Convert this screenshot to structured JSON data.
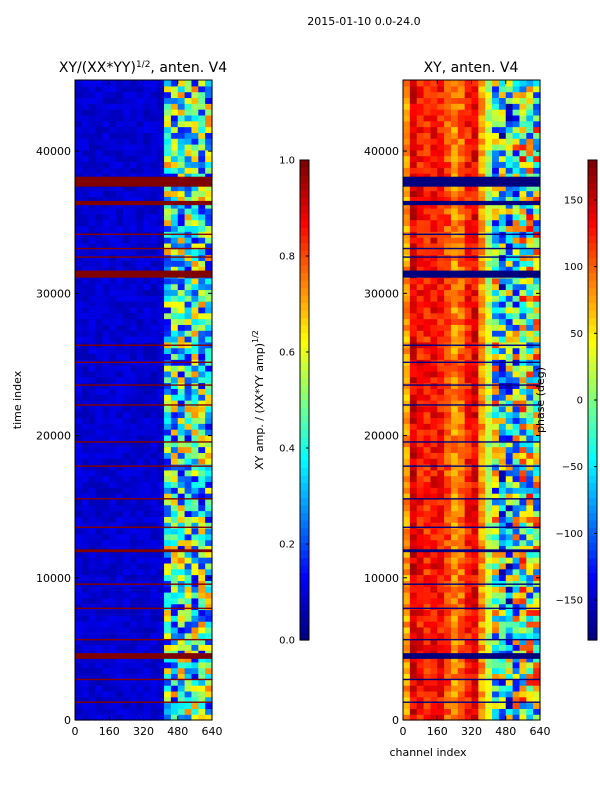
{
  "figure_title": "2015-01-10 0.0-24.0",
  "chart_data": [
    {
      "type": "heatmap",
      "title_prefix": "XY/(XX*YY)",
      "title_exponent": "1/2",
      "title_suffix": ", anten. V4",
      "xlabel": "",
      "ylabel": "time index",
      "xlim": [
        0,
        640
      ],
      "ylim": [
        0,
        45000
      ],
      "xticks": [
        0,
        160,
        320,
        480,
        640
      ],
      "yticks": [
        0,
        10000,
        20000,
        30000,
        40000
      ],
      "colormap": "jet",
      "colorbar": {
        "label_prefix": "XY amp. / (XX*YY amp)",
        "label_exponent": "1/2",
        "range": [
          0.0,
          1.0
        ],
        "ticks": [
          "0.0",
          "0.2",
          "0.4",
          "0.6",
          "0.8",
          "1.0"
        ]
      },
      "background_value": 0.08,
      "flagged_row_value": 1.0,
      "flagged_rows": [
        [
          1200,
          1300
        ],
        [
          2800,
          2900
        ],
        [
          4300,
          4700
        ],
        [
          5600,
          5700
        ],
        [
          7800,
          7900
        ],
        [
          9500,
          9600
        ],
        [
          11800,
          12000
        ],
        [
          13500,
          13600
        ],
        [
          15500,
          15600
        ],
        [
          17800,
          17900
        ],
        [
          19500,
          19600
        ],
        [
          22100,
          22200
        ],
        [
          23500,
          23600
        ],
        [
          25100,
          25200
        ],
        [
          26300,
          26400
        ],
        [
          31100,
          31600
        ],
        [
          32500,
          32600
        ],
        [
          33100,
          33200
        ],
        [
          34100,
          34200
        ],
        [
          36200,
          36500
        ],
        [
          37500,
          38200
        ]
      ],
      "active_channel_range": [
        430,
        640
      ],
      "active_value_range": [
        0.1,
        0.75
      ]
    },
    {
      "type": "heatmap",
      "title": "XY, anten. V4",
      "xlabel": "channel index",
      "ylabel": "",
      "xlim": [
        0,
        640
      ],
      "ylim": [
        0,
        45000
      ],
      "xticks": [
        0,
        160,
        320,
        480,
        640
      ],
      "yticks": [
        0,
        10000,
        20000,
        30000,
        40000
      ],
      "colormap": "jet",
      "colorbar": {
        "label": "phase (deg)",
        "range": [
          -180,
          180
        ],
        "ticks": [
          "−150",
          "−100",
          "−50",
          "0",
          "50",
          "100",
          "150"
        ]
      },
      "flagged_rows": [
        [
          1200,
          1300
        ],
        [
          2800,
          2900
        ],
        [
          4300,
          4700
        ],
        [
          5600,
          5700
        ],
        [
          7800,
          7900
        ],
        [
          9500,
          9600
        ],
        [
          11800,
          12000
        ],
        [
          13500,
          13600
        ],
        [
          15500,
          15600
        ],
        [
          17800,
          17900
        ],
        [
          19500,
          19600
        ],
        [
          22100,
          22200
        ],
        [
          23500,
          23600
        ],
        [
          25100,
          25200
        ],
        [
          26300,
          26400
        ],
        [
          31100,
          31600
        ],
        [
          32500,
          32600
        ],
        [
          33100,
          33200
        ],
        [
          34100,
          34200
        ],
        [
          36200,
          36500
        ],
        [
          37500,
          38200
        ]
      ],
      "phase_profile": [
        {
          "channel": 0,
          "phase": 30
        },
        {
          "channel": 40,
          "phase": 150
        },
        {
          "channel": 100,
          "phase": 120
        },
        {
          "channel": 160,
          "phase": 140
        },
        {
          "channel": 250,
          "phase": 80
        },
        {
          "channel": 330,
          "phase": 150
        },
        {
          "channel": 400,
          "phase": 20
        },
        {
          "channel": 480,
          "phase": -60
        },
        {
          "channel": 560,
          "phase": 10
        },
        {
          "channel": 640,
          "phase": 0
        }
      ]
    }
  ]
}
